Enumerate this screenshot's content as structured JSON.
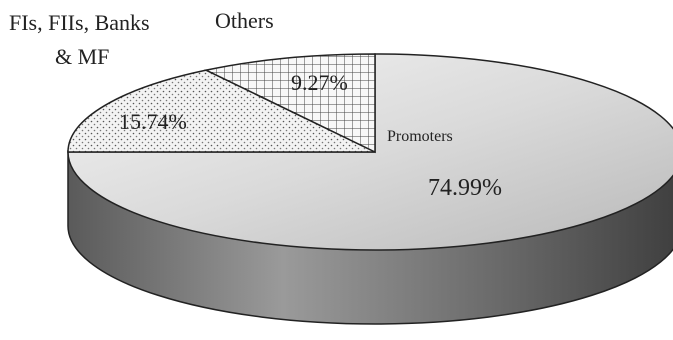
{
  "chart_data": {
    "type": "pie",
    "style": "3d",
    "slices": [
      {
        "label": "Promoters",
        "value": 74.99,
        "value_label": "74.99%",
        "fill": "gradient-gray"
      },
      {
        "label": "FIs, FIIs, Banks & MF",
        "value": 15.74,
        "value_label": "15.74%",
        "fill": "dotted"
      },
      {
        "label": "Others",
        "value": 9.27,
        "value_label": "9.27%",
        "fill": "crosshatch"
      }
    ],
    "label_lines": {
      "fis_line1": "FIs, FIIs, Banks",
      "fis_line2": "& MF"
    },
    "colors": {
      "outline": "#222222",
      "side_dark": "#4a4a4a",
      "side_light": "#9a9a9a",
      "top_light": "#f2f2f2",
      "top_dark": "#bdbdbd"
    }
  }
}
